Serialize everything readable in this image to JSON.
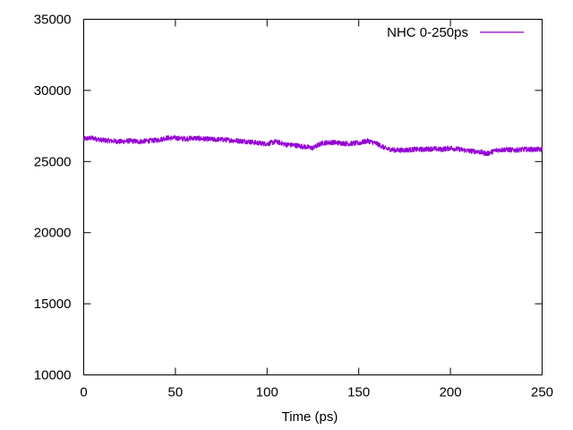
{
  "chart_data": {
    "type": "line",
    "title": "",
    "xlabel": "Time (ps)",
    "ylabel": "",
    "xlim": [
      0,
      250
    ],
    "ylim": [
      10000,
      35000
    ],
    "x_ticks": [
      0,
      50,
      100,
      150,
      200,
      250
    ],
    "y_ticks": [
      10000,
      15000,
      20000,
      25000,
      30000,
      35000
    ],
    "x_tick_labels": [
      "0",
      "50",
      "100",
      "150",
      "200",
      "250"
    ],
    "y_tick_labels": [
      "10000",
      "15000",
      "20000",
      "25000",
      "30000",
      "35000"
    ],
    "grid": false,
    "legend_position": "top-right",
    "series": [
      {
        "name": "NHC 0-250ps",
        "color": "#9400d3",
        "noise_amplitude": 180,
        "x": [
          0,
          5,
          10,
          15,
          20,
          25,
          30,
          35,
          40,
          45,
          50,
          55,
          60,
          65,
          70,
          75,
          80,
          85,
          90,
          95,
          100,
          105,
          110,
          115,
          120,
          125,
          130,
          135,
          140,
          145,
          150,
          155,
          160,
          165,
          170,
          175,
          180,
          185,
          190,
          195,
          200,
          205,
          210,
          215,
          220,
          225,
          230,
          235,
          240,
          245,
          250
        ],
        "values": [
          26600,
          26650,
          26500,
          26450,
          26400,
          26450,
          26400,
          26450,
          26500,
          26650,
          26650,
          26600,
          26650,
          26600,
          26550,
          26550,
          26500,
          26450,
          26400,
          26300,
          26250,
          26400,
          26200,
          26150,
          26050,
          25950,
          26300,
          26350,
          26300,
          26250,
          26300,
          26450,
          26250,
          25900,
          25800,
          25800,
          25850,
          25850,
          25900,
          25850,
          25950,
          25850,
          25750,
          25700,
          25550,
          25800,
          25850,
          25800,
          25850,
          25850,
          25850
        ]
      }
    ]
  }
}
